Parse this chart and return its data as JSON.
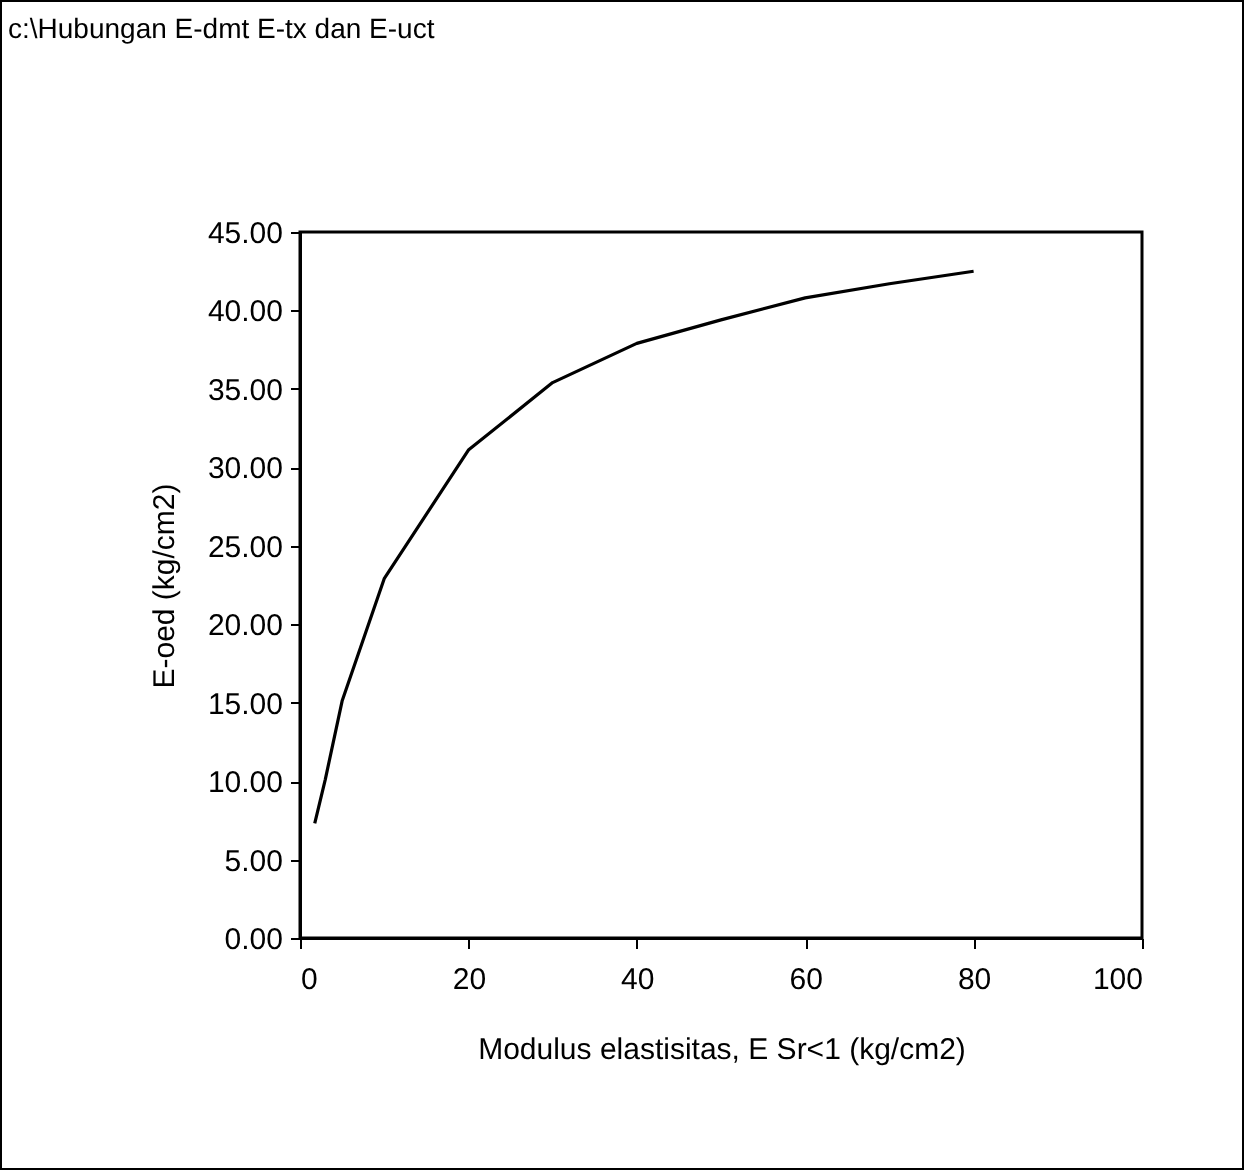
{
  "chart_data": {
    "type": "line",
    "title": "c:\\Hubungan E-dmt E-tx dan E-uct",
    "xlabel": "Modulus elastisitas, E Sr<1 (kg/cm2)",
    "ylabel": "E-oed (kg/cm2)",
    "x": [
      1.75,
      3,
      5,
      10,
      20,
      30,
      40,
      50,
      60,
      70,
      80
    ],
    "series": [
      {
        "color": "#000000",
        "values": [
          7.3,
          10.1,
          15.1,
          22.9,
          31.1,
          35.4,
          37.9,
          39.4,
          40.8,
          41.7,
          42.5
        ]
      }
    ],
    "xlim": [
      0,
      100
    ],
    "xticks": [
      0,
      20,
      40,
      60,
      80,
      100
    ],
    "ylim": [
      0,
      45
    ],
    "yticks": [
      {
        "value": 0,
        "label": "0.00"
      },
      {
        "value": 5,
        "label": "5.00"
      },
      {
        "value": 10,
        "label": "10.00"
      },
      {
        "value": 15,
        "label": "15.00"
      },
      {
        "value": 20,
        "label": "20.00"
      },
      {
        "value": 25,
        "label": "25.00"
      },
      {
        "value": 30,
        "label": "30.00"
      },
      {
        "value": 35,
        "label": "35.00"
      },
      {
        "value": 40,
        "label": "40.00"
      },
      {
        "value": 45,
        "label": "45.00"
      }
    ],
    "grid": false,
    "marker": "none",
    "line_style": "solid"
  }
}
